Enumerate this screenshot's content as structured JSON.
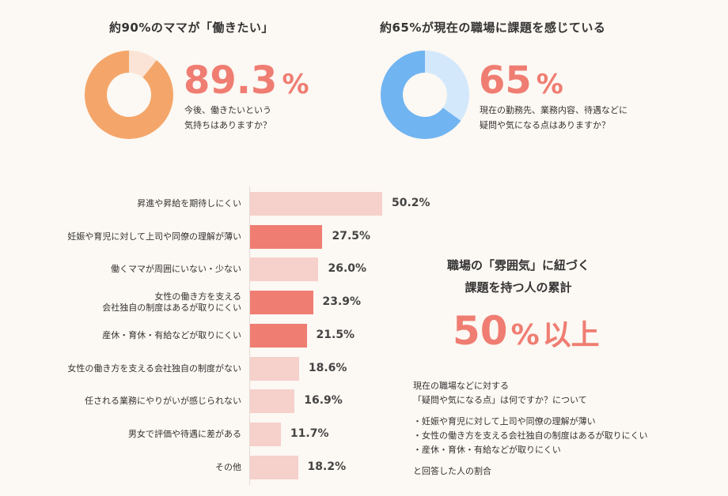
{
  "panels": [
    {
      "title": "約90%のママが「働きたい」",
      "value": "89.3",
      "unit": "%",
      "fraction": 0.893,
      "desc": [
        "今後、働きたいという",
        "気持ちはありますか？"
      ],
      "colors": {
        "main": "#f4a66a",
        "rest": "#fbe4d6",
        "number": "#ef7d72"
      }
    },
    {
      "title": "約65%が現在の職場に課題を感じている",
      "value": "65",
      "unit": "%",
      "fraction": 0.65,
      "desc": [
        "現在の勤務先、業務内容、待遇などに",
        "疑問や気になる点はありますか？"
      ],
      "colors": {
        "main": "#70b4f1",
        "rest": "#d3e8fb",
        "number": "#ef7d72"
      }
    }
  ],
  "chart_data": {
    "type": "bar",
    "orientation": "horizontal",
    "categories": [
      "昇進や昇給を期待しにくい",
      "妊娠や育児に対して上司や同僚の理解が薄い",
      "働くママが周囲にいない・少ない",
      "女性の働き方を支える\n会社独自の制度はあるが取りにくい",
      "産休・育休・有給などが取りにくい",
      "女性の働き方を支える会社独自の制度がない",
      "任される業務にやりがいが感じられない",
      "男女で評価や待遇に差がある",
      "その他"
    ],
    "values": [
      50.2,
      27.5,
      26.0,
      23.9,
      21.5,
      18.6,
      16.9,
      11.7,
      18.2
    ],
    "value_labels": [
      "50.2%",
      "27.5%",
      "26.0%",
      "23.9%",
      "21.5%",
      "18.6%",
      "16.9%",
      "11.7%",
      "18.2%"
    ],
    "highlighted": [
      false,
      true,
      false,
      true,
      true,
      false,
      false,
      false,
      false
    ],
    "colors": {
      "normal": "#f6d0cb",
      "highlight": "#ef7d72"
    },
    "xlim": [
      0,
      60
    ]
  },
  "cumulative": {
    "title_lines": [
      "職場の「雰囲気」に紐づく",
      "課題を持つ人の累計"
    ],
    "number": "50",
    "unit": "%",
    "suffix": "以上"
  },
  "note": {
    "intro": [
      "現在の職場などに対する",
      "「疑問や気になる点」は何ですか？について"
    ],
    "items": [
      "・妊娠や育児に対して上司や同僚の理解が薄い",
      "・女性の働き方を支える会社独自の制度はあるが取りにくい",
      "・産休・育休・有給などが取りにくい"
    ],
    "outro": "と回答した人の割合"
  }
}
